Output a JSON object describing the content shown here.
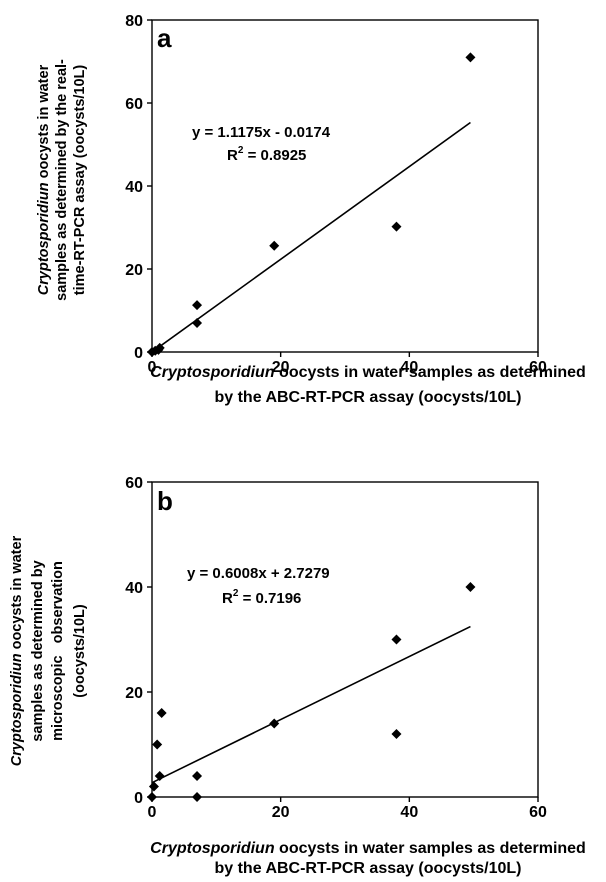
{
  "chart_data": [
    {
      "type": "scatter",
      "panel_label": "a",
      "xlabel_line1_italic": "Cryptosporidiun",
      "xlabel_line1_rest": " oocysts in water samples as determined",
      "xlabel_line2": "by the ABC-RT-PCR assay (oocysts/10L)",
      "ylabel_line1_italic": "Cryptosporidiun",
      "ylabel_line1_rest": " oocysts in water",
      "ylabel_line2": "samples as determined by the real-",
      "ylabel_line3": "time-RT-PCR assay (oocysts/10L)",
      "xlim": [
        0,
        60
      ],
      "ylim": [
        0,
        80
      ],
      "xticks": [
        "0",
        "20",
        "40",
        "60"
      ],
      "yticks": [
        "0",
        "20",
        "40",
        "60",
        "80"
      ],
      "points": [
        [
          0,
          0
        ],
        [
          0.5,
          0.3
        ],
        [
          1,
          0.5
        ],
        [
          1.2,
          1
        ],
        [
          7,
          7
        ],
        [
          7,
          11.3
        ],
        [
          19,
          25.6
        ],
        [
          38,
          30.2
        ],
        [
          49.5,
          71
        ]
      ],
      "trendline": {
        "slope": 1.1175,
        "intercept": -0.0174
      },
      "equation": "y = 1.1175x - 0.0174",
      "r2_prefix": "R",
      "r2_sup": "2",
      "r2_value": " = 0.8925",
      "grid": false
    },
    {
      "type": "scatter",
      "panel_label": "b",
      "xlabel_line1_italic": "Cryptosporidiun",
      "xlabel_line1_rest": " oocysts in water samples as determined",
      "xlabel_line2": "by the ABC-RT-PCR assay (oocysts/10L)",
      "ylabel_line1_italic": "Cryptosporidiun",
      "ylabel_line1_rest": " oocysts in water",
      "ylabel_line2": "samples as determined by",
      "ylabel_line3": "microscopic   observation",
      "ylabel_line4": "(oocysts/10L)",
      "xlim": [
        0,
        60
      ],
      "ylim": [
        0,
        60
      ],
      "xticks": [
        "0",
        "20",
        "40",
        "60"
      ],
      "yticks": [
        "0",
        "20",
        "40",
        "60"
      ],
      "points": [
        [
          0,
          0
        ],
        [
          0.3,
          2
        ],
        [
          0.8,
          10
        ],
        [
          1.2,
          4
        ],
        [
          1.5,
          16
        ],
        [
          7,
          4
        ],
        [
          7,
          0
        ],
        [
          19,
          14
        ],
        [
          38,
          30
        ],
        [
          38,
          12
        ],
        [
          49.5,
          40
        ]
      ],
      "trendline": {
        "slope": 0.6008,
        "intercept": 2.7279
      },
      "equation": "y = 0.6008x + 2.7279",
      "r2_prefix": "R",
      "r2_sup": "2",
      "r2_value": " = 0.7196",
      "grid": false
    }
  ]
}
